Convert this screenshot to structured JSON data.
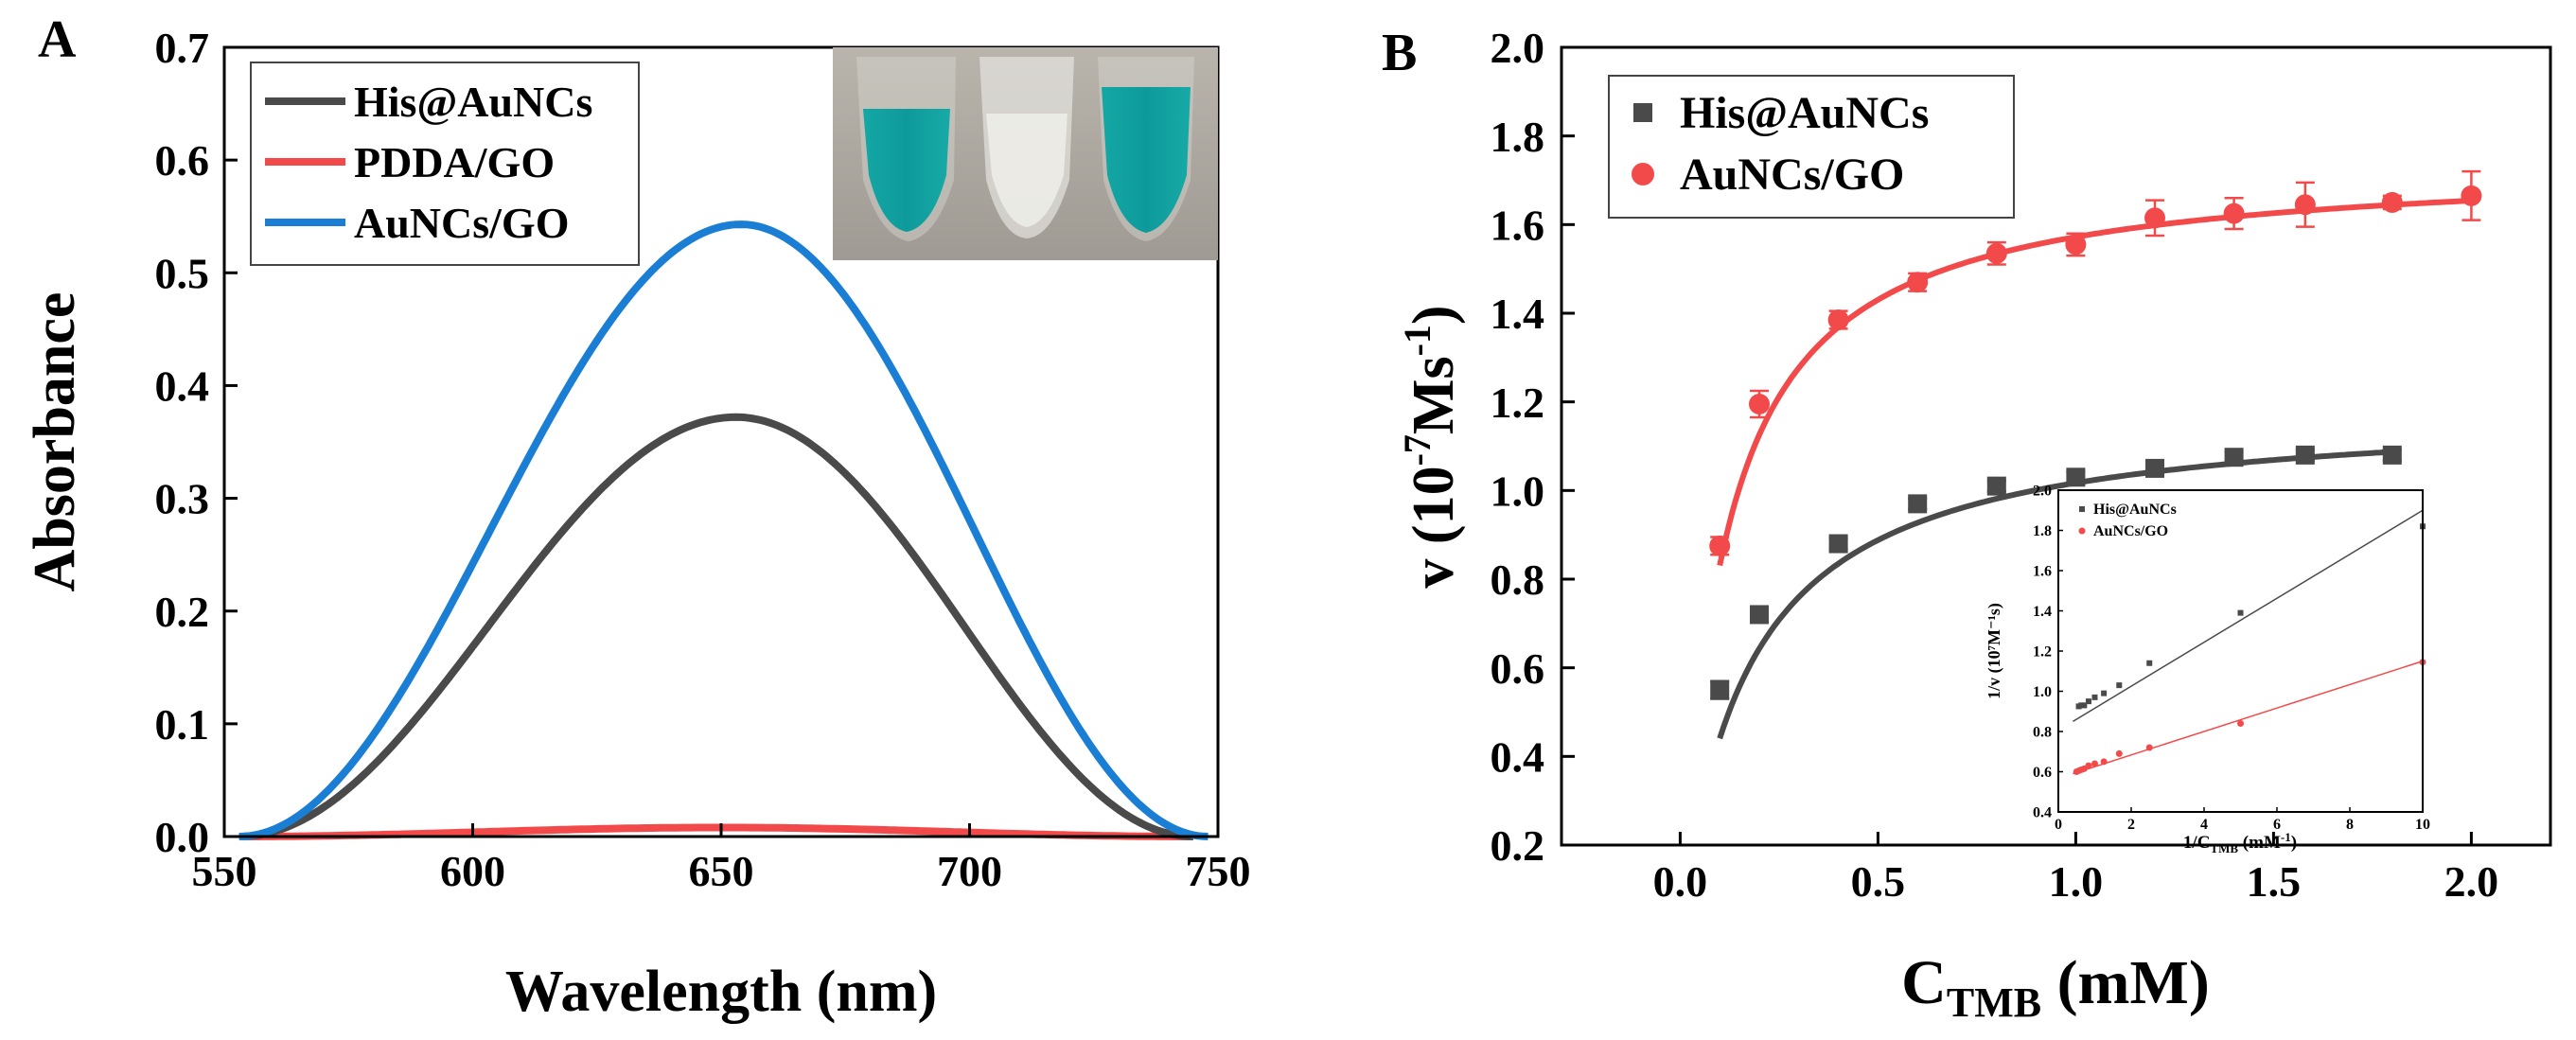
{
  "chart_data": [
    {
      "panel_label": "A",
      "type": "line",
      "title": "",
      "xlabel": "Wavelength (nm)",
      "ylabel": "Absorbance",
      "xlim": [
        550,
        750
      ],
      "ylim": [
        0,
        0.7
      ],
      "xticks": [
        "550",
        "600",
        "650",
        "700",
        "750"
      ],
      "yticks": [
        "0.0",
        "0.1",
        "0.2",
        "0.3",
        "0.4",
        "0.5",
        "0.6",
        "0.7"
      ],
      "legend_position": "top-left",
      "grid": false,
      "inset_photo": "photo of three cuvettes: blue, colorless, blue",
      "series": [
        {
          "name": "His@AuNCs",
          "color": "#4a4a4a",
          "peak_x": 653,
          "peak_y": 0.372,
          "start_x": 553,
          "end_x": 745
        },
        {
          "name": "PDDA/GO",
          "color": "#f24a4a",
          "peak_x": 650,
          "peak_y": 0.008,
          "start_x": 553,
          "end_x": 745
        },
        {
          "name": "AuNCs/GO",
          "color": "#1a7fd4",
          "peak_x": 654,
          "peak_y": 0.543,
          "start_x": 553,
          "end_x": 748
        }
      ]
    },
    {
      "panel_label": "B",
      "type": "scatter",
      "title": "",
      "xlabel_main": "C",
      "xlabel_sub": "TMB",
      "xlabel_unit": " (mM)",
      "ylabel_main": "v (10",
      "ylabel_sup": "-7",
      "ylabel_rest": "Ms",
      "ylabel_sup2": "-1",
      "ylabel_end": ")",
      "xlim": [
        -0.3,
        2.2
      ],
      "ylim": [
        0.2,
        2.0
      ],
      "xticks": [
        "0.0",
        "0.5",
        "1.0",
        "1.5",
        "2.0"
      ],
      "yticks": [
        "0.2",
        "0.4",
        "0.6",
        "0.8",
        "1.0",
        "1.2",
        "1.4",
        "1.6",
        "1.8",
        "2.0"
      ],
      "legend_position": "top-left",
      "series": [
        {
          "name": "His@AuNCs",
          "color": "#4a4a4a",
          "marker": "square",
          "x": [
            0.1,
            0.2,
            0.4,
            0.6,
            0.8,
            1.0,
            1.2,
            1.4,
            1.58,
            1.8
          ],
          "y": [
            0.55,
            0.72,
            0.88,
            0.97,
            1.01,
            1.03,
            1.05,
            1.075,
            1.08,
            1.08
          ],
          "err": [
            0.02,
            0.015,
            0.012,
            0.012,
            0.012,
            0.012,
            0.012,
            0.012,
            0.012,
            0.012
          ],
          "vmax": 1.19,
          "km": 0.17
        },
        {
          "name": "AuNCs/GO",
          "color": "#f24a4a",
          "marker": "circle",
          "x": [
            0.1,
            0.2,
            0.4,
            0.6,
            0.8,
            1.0,
            1.2,
            1.4,
            1.58,
            1.8,
            2.0
          ],
          "y": [
            0.875,
            1.195,
            1.385,
            1.47,
            1.535,
            1.555,
            1.615,
            1.625,
            1.645,
            1.65,
            1.665
          ],
          "err": [
            0.02,
            0.03,
            0.02,
            0.02,
            0.025,
            0.025,
            0.04,
            0.035,
            0.05,
            0.015,
            0.055
          ],
          "vmax": 1.745,
          "km": 0.11
        }
      ],
      "inset": {
        "type": "scatter",
        "xlabel_main": "1/C",
        "xlabel_sub": "TMB",
        "xlabel_unit": " (mM",
        "xlabel_sup": "-1",
        "xlabel_end": ")",
        "ylabel": "1/v (10⁷M⁻¹s)",
        "xlim": [
          0,
          10
        ],
        "ylim": [
          0.4,
          2.0
        ],
        "xticks": [
          "0",
          "2",
          "4",
          "6",
          "8",
          "10"
        ],
        "yticks": [
          "0.4",
          "0.6",
          "0.8",
          "1.0",
          "1.2",
          "1.4",
          "1.6",
          "1.8",
          "2.0"
        ],
        "series": [
          {
            "name": "His@AuNCs",
            "color": "#4a4a4a",
            "x": [
              0.56,
              0.63,
              0.71,
              0.83,
              1.0,
              1.25,
              1.67,
              2.5,
              5.0,
              10.0
            ],
            "y": [
              0.925,
              0.93,
              0.93,
              0.95,
              0.97,
              0.99,
              1.03,
              1.14,
              1.39,
              1.82
            ],
            "fit_x": [
              0.4,
              10.0
            ],
            "fit_y": [
              0.85,
              1.9
            ]
          },
          {
            "name": "AuNCs/GO",
            "color": "#f24a4a",
            "x": [
              0.5,
              0.56,
              0.63,
              0.71,
              0.83,
              1.0,
              1.25,
              1.67,
              2.5,
              5.0,
              10.0
            ],
            "y": [
              0.6,
              0.605,
              0.61,
              0.615,
              0.63,
              0.64,
              0.65,
              0.69,
              0.72,
              0.84,
              1.145
            ],
            "fit_x": [
              0.4,
              10.0
            ],
            "fit_y": [
              0.59,
              1.15
            ]
          }
        ]
      }
    }
  ]
}
